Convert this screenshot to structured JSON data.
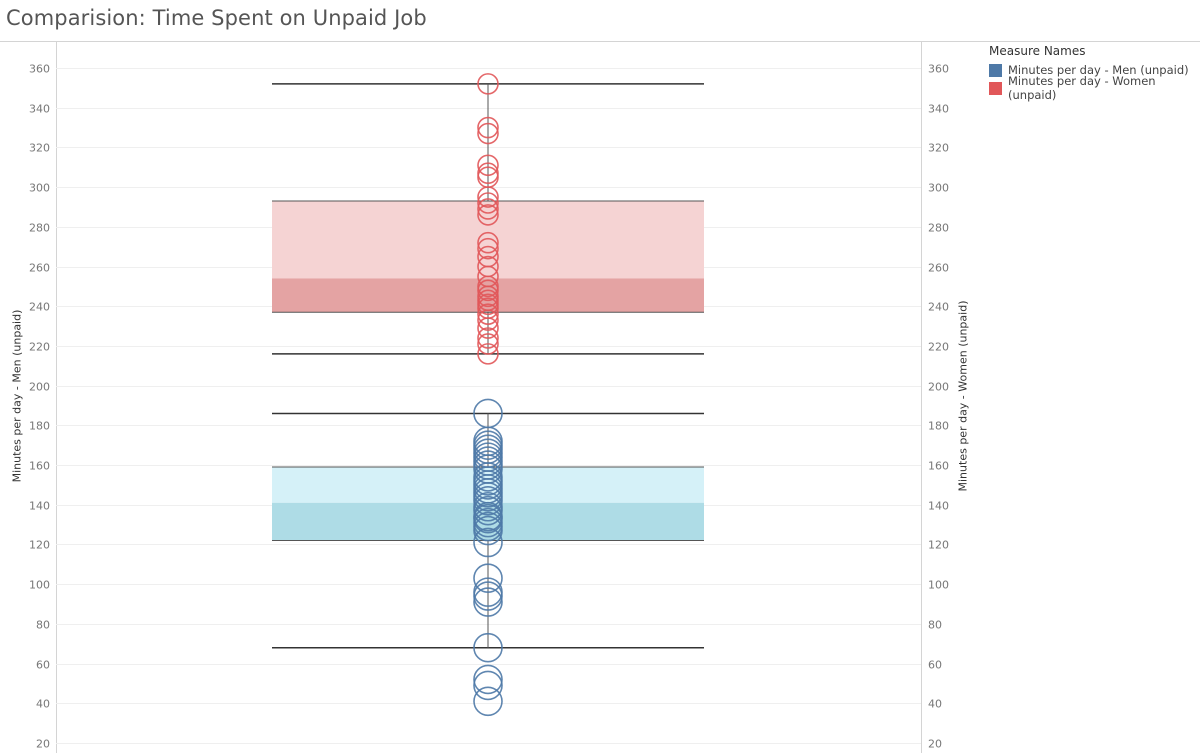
{
  "title": "Comparision: Time Spent on Unpaid Job",
  "legend": {
    "title": "Measure Names",
    "items": [
      {
        "label": "Minutes per day - Men (unpaid)",
        "color": "#4e79a7"
      },
      {
        "label": "Minutes per day - Women (unpaid)",
        "color": "#e15759"
      }
    ]
  },
  "chart_data": {
    "type": "scatter",
    "title": "Comparision: Time Spent on Unpaid Job",
    "ylabel_left": "Minutes per day - Men (unpaid)",
    "ylabel_right": "Minutes per day - Women (unpaid)",
    "ylim": [
      20,
      370
    ],
    "yticks": [
      20,
      40,
      60,
      80,
      100,
      120,
      140,
      160,
      180,
      200,
      220,
      240,
      260,
      280,
      300,
      320,
      340,
      360
    ],
    "grid": true,
    "legend_position": "top-right",
    "series": [
      {
        "name": "Minutes per day - Men (unpaid)",
        "color": "#4e79a7",
        "values": [
          41,
          49,
          52,
          68,
          91,
          94,
          96,
          103,
          121,
          127,
          129,
          131,
          133,
          134,
          137,
          139,
          142,
          144,
          146,
          148,
          150,
          152,
          154,
          158,
          160,
          162,
          164,
          166,
          168,
          170,
          172,
          186
        ],
        "boxplot": {
          "whisker_low": 68,
          "q1": 122,
          "median": 141,
          "q3": 159,
          "whisker_high": 186
        },
        "box_colors": {
          "upper": "#d5f1f8",
          "lower": "#aedce6"
        }
      },
      {
        "name": "Minutes per day - Women (unpaid)",
        "color": "#e15759",
        "values": [
          216,
          221,
          224,
          229,
          233,
          236,
          239,
          241,
          243,
          245,
          248,
          250,
          255,
          260,
          265,
          269,
          272,
          286,
          289,
          292,
          295,
          305,
          307,
          311,
          327,
          330,
          352
        ],
        "boxplot": {
          "whisker_low": 216,
          "q1": 237,
          "median": 254,
          "q3": 293,
          "whisker_high": 352
        },
        "box_colors": {
          "upper": "#f5d3d3",
          "lower": "#e4a3a3"
        }
      }
    ]
  }
}
